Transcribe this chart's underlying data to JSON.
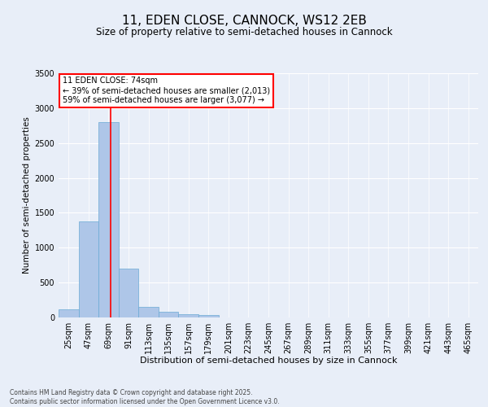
{
  "title": "11, EDEN CLOSE, CANNOCK, WS12 2EB",
  "subtitle": "Size of property relative to semi-detached houses in Cannock",
  "xlabel": "Distribution of semi-detached houses by size in Cannock",
  "ylabel": "Number of semi-detached properties",
  "annotation_line1": "11 EDEN CLOSE: 74sqm",
  "annotation_line2": "← 39% of semi-detached houses are smaller (2,013)",
  "annotation_line3": "59% of semi-detached houses are larger (3,077) →",
  "categories": [
    "25sqm",
    "47sqm",
    "69sqm",
    "91sqm",
    "113sqm",
    "135sqm",
    "157sqm",
    "179sqm",
    "201sqm",
    "223sqm",
    "245sqm",
    "267sqm",
    "289sqm",
    "311sqm",
    "333sqm",
    "355sqm",
    "377sqm",
    "399sqm",
    "421sqm",
    "443sqm",
    "465sqm"
  ],
  "values": [
    120,
    1380,
    2800,
    700,
    150,
    80,
    50,
    35,
    5,
    0,
    0,
    0,
    0,
    0,
    0,
    0,
    0,
    0,
    0,
    0,
    0
  ],
  "bar_color": "#aec6e8",
  "bar_edge_color": "#6aaad4",
  "red_line_x": 2.09,
  "ylim": [
    0,
    3500
  ],
  "yticks": [
    0,
    500,
    1000,
    1500,
    2000,
    2500,
    3000,
    3500
  ],
  "bg_color": "#e8eef8",
  "grid_color": "#ffffff",
  "footer_line1": "Contains HM Land Registry data © Crown copyright and database right 2025.",
  "footer_line2": "Contains public sector information licensed under the Open Government Licence v3.0."
}
